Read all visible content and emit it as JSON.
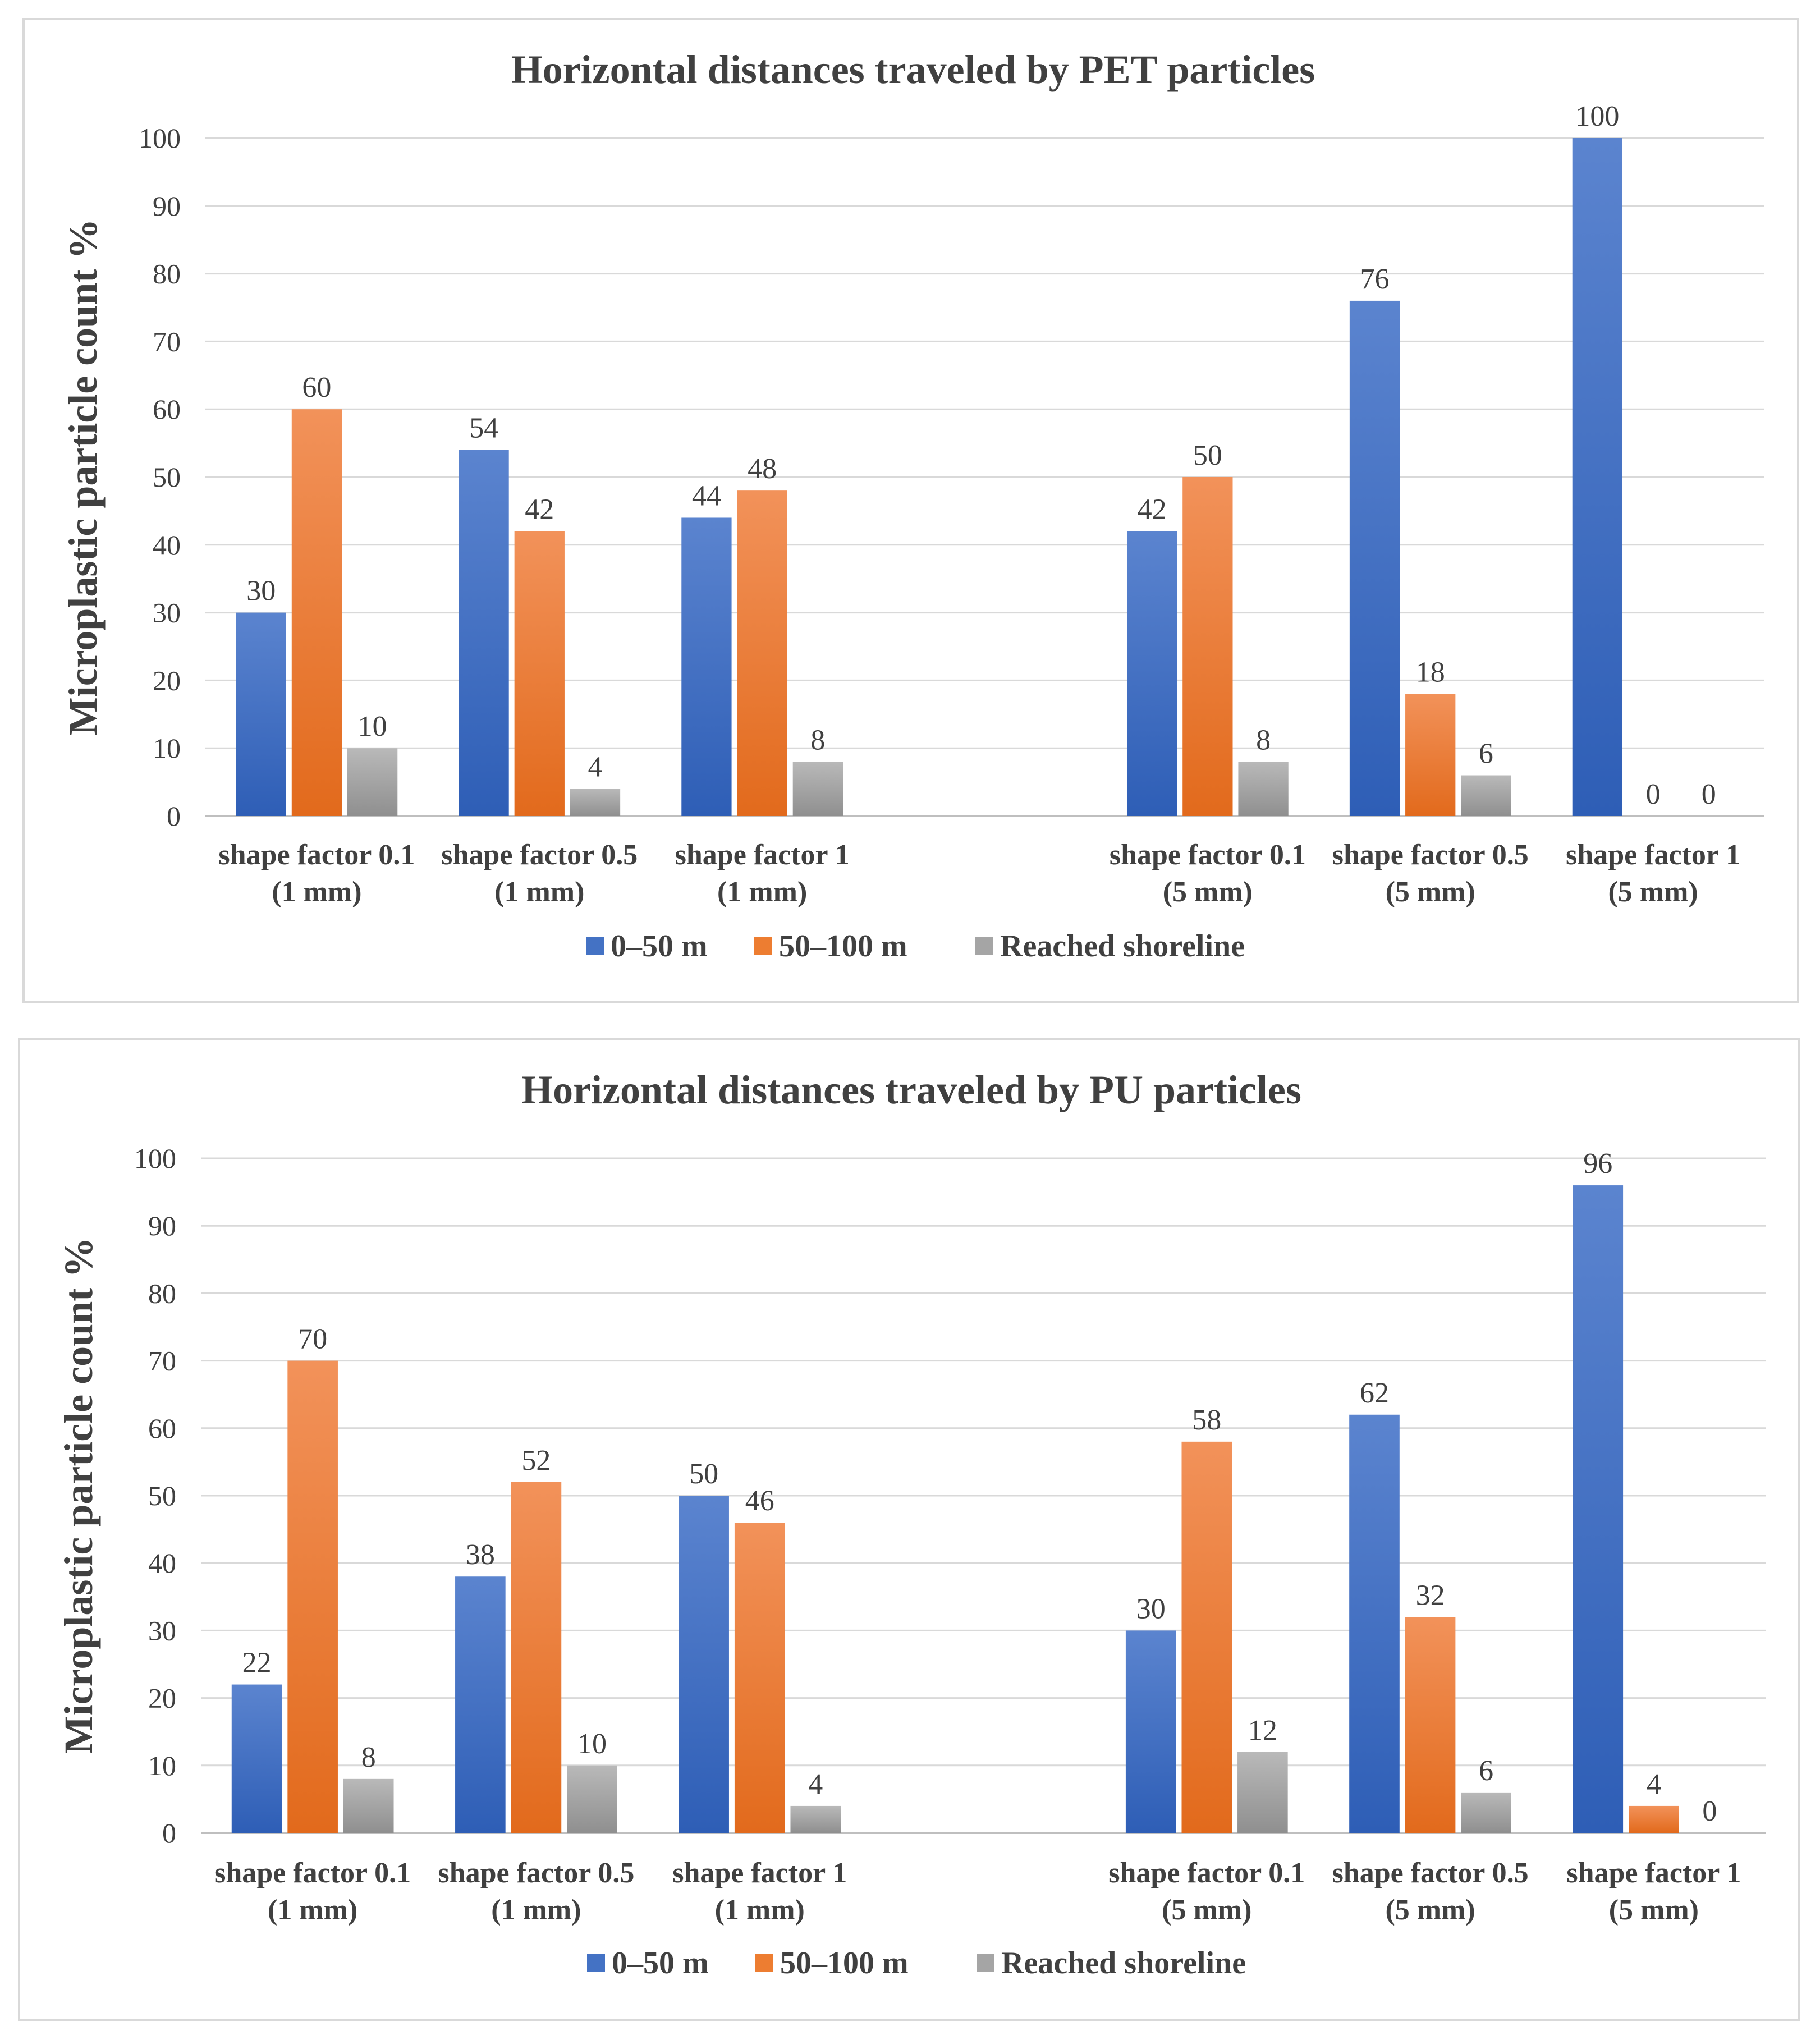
{
  "chart_data": [
    {
      "type": "bar",
      "title": "Horizontal distances traveled by PET particles",
      "xlabel": "",
      "ylabel": "Microplastic particle count %",
      "ylim": [
        0,
        100
      ],
      "yticks": [
        0,
        10,
        20,
        30,
        40,
        50,
        60,
        70,
        80,
        90,
        100
      ],
      "grid": true,
      "legend_position": "bottom",
      "categories": [
        [
          "shape factor  0.1",
          "(1 mm)"
        ],
        [
          "shape factor  0.5",
          "(1 mm)"
        ],
        [
          "shape factor  1",
          "(1 mm)"
        ],
        [
          "",
          ""
        ],
        [
          "shape factor  0.1",
          "(5 mm)"
        ],
        [
          "shape factor  0.5",
          "(5 mm)"
        ],
        [
          "shape factor  1",
          "(5 mm)"
        ]
      ],
      "series": [
        {
          "name": "0–50 m",
          "color": "#4472c4",
          "values": [
            30,
            54,
            44,
            null,
            42,
            76,
            100
          ]
        },
        {
          "name": "50–100 m",
          "color": "#ed7d31",
          "values": [
            60,
            42,
            48,
            null,
            50,
            18,
            0
          ]
        },
        {
          "name": "Reached shoreline",
          "color": "#a5a5a5",
          "values": [
            10,
            4,
            8,
            null,
            8,
            6,
            0
          ]
        }
      ],
      "data_labels": [
        [
          "30",
          "54",
          "44",
          "",
          "42",
          "76",
          "100"
        ],
        [
          "60",
          "42",
          "48",
          "",
          "50",
          "18",
          "0"
        ],
        [
          "10",
          "4",
          "8",
          "",
          "8",
          "6",
          "0"
        ]
      ]
    },
    {
      "type": "bar",
      "title": "Horizontal distances traveled by PU particles",
      "xlabel": "",
      "ylabel": "Microplastic particle count %",
      "ylim": [
        0,
        100
      ],
      "yticks": [
        0,
        10,
        20,
        30,
        40,
        50,
        60,
        70,
        80,
        90,
        100
      ],
      "grid": true,
      "legend_position": "bottom",
      "categories": [
        [
          "shape factor  0.1",
          "(1 mm)"
        ],
        [
          "shape factor  0.5",
          "(1 mm)"
        ],
        [
          "shape factor  1",
          "(1 mm)"
        ],
        [
          "",
          ""
        ],
        [
          "shape factor  0.1",
          "(5 mm)"
        ],
        [
          "shape factor  0.5",
          "(5 mm)"
        ],
        [
          "shape factor  1",
          "(5 mm)"
        ]
      ],
      "series": [
        {
          "name": "0–50 m",
          "color": "#4472c4",
          "values": [
            22,
            38,
            50,
            null,
            30,
            62,
            96
          ]
        },
        {
          "name": "50–100 m",
          "color": "#ed7d31",
          "values": [
            70,
            52,
            46,
            null,
            58,
            32,
            4
          ]
        },
        {
          "name": "Reached shoreline",
          "color": "#a5a5a5",
          "values": [
            8,
            10,
            4,
            null,
            12,
            6,
            0
          ]
        }
      ],
      "data_labels": [
        [
          "22",
          "38",
          "50",
          "",
          "30",
          "62",
          "96"
        ],
        [
          "70",
          "52",
          "46",
          "",
          "58",
          "32",
          "4"
        ],
        [
          "8",
          "10",
          "4",
          "",
          "12",
          "6",
          "0"
        ]
      ]
    }
  ]
}
